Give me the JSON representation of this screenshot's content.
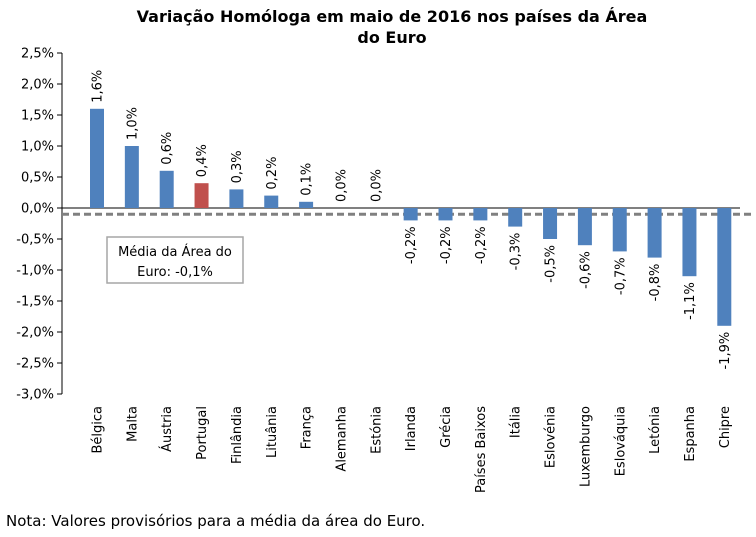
{
  "chart_data": {
    "type": "bar",
    "title_lines": [
      "Variação Homóloga em maio de 2016 nos países da Área",
      "do Euro"
    ],
    "categories": [
      "Bélgica",
      "Malta",
      "Áustria",
      "Portugal",
      "Finlândia",
      "Lituânia",
      "França",
      "Alemanha",
      "Estónia",
      "Irlanda",
      "Grécia",
      "Países Baixos",
      "Itália",
      "Eslovénia",
      "Luxemburgo",
      "Eslováquia",
      "Letónia",
      "Espanha",
      "Chipre"
    ],
    "values": [
      1.6,
      1.0,
      0.6,
      0.4,
      0.3,
      0.2,
      0.1,
      0.0,
      0.0,
      -0.2,
      -0.2,
      -0.2,
      -0.3,
      -0.5,
      -0.6,
      -0.7,
      -0.8,
      -1.1,
      -1.9
    ],
    "data_labels": [
      "1,6%",
      "1,0%",
      "0,6%",
      "0,4%",
      "0,3%",
      "0,2%",
      "0,1%",
      "0,0%",
      "0,0%",
      "-0,2%",
      "-0,2%",
      "-0,2%",
      "-0,3%",
      "-0,5%",
      "-0,6%",
      "-0,7%",
      "-0,8%",
      "-1,1%",
      "-1,9%"
    ],
    "ylim": [
      -3.0,
      2.5
    ],
    "yticks": [
      2.5,
      2.0,
      1.5,
      1.0,
      0.5,
      0.0,
      -0.5,
      -1.0,
      -1.5,
      -2.0,
      -2.5,
      -3.0
    ],
    "ytick_labels": [
      "2,5%",
      "2,0%",
      "1,5%",
      "1,0%",
      "0,5%",
      "0,0%",
      "-0,5%",
      "-1,0%",
      "-1,5%",
      "-2,0%",
      "-2,5%",
      "-3,0%"
    ],
    "highlight_category": "Portugal",
    "reference_line": {
      "value": -0.1,
      "label_lines": [
        "Média da Área  do",
        "Euro: -0,1%"
      ]
    },
    "colors": {
      "bar": "#4f81bd",
      "highlight": "#c0504d",
      "reference_line": "#808080"
    },
    "xlabel": "",
    "ylabel": ""
  },
  "note": "Nota: Valores provisórios para a média da área do Euro."
}
